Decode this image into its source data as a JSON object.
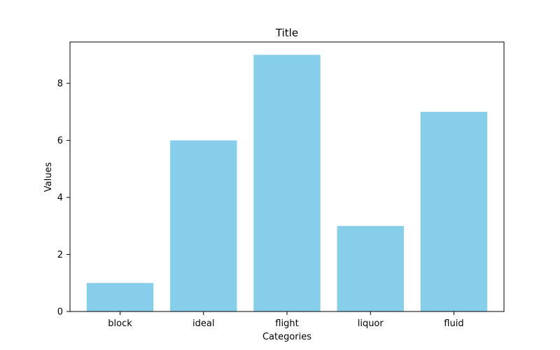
{
  "chart_data": {
    "type": "bar",
    "title": "Title",
    "xlabel": "Categories",
    "ylabel": "Values",
    "categories": [
      "block",
      "ideal",
      "flight",
      "liquor",
      "fluid"
    ],
    "values": [
      1,
      6,
      9,
      3,
      7
    ],
    "ylim": [
      0,
      9.45
    ],
    "yticks": [
      0,
      2,
      4,
      6,
      8
    ],
    "grid": false,
    "bar_color": "#87ceeb"
  }
}
